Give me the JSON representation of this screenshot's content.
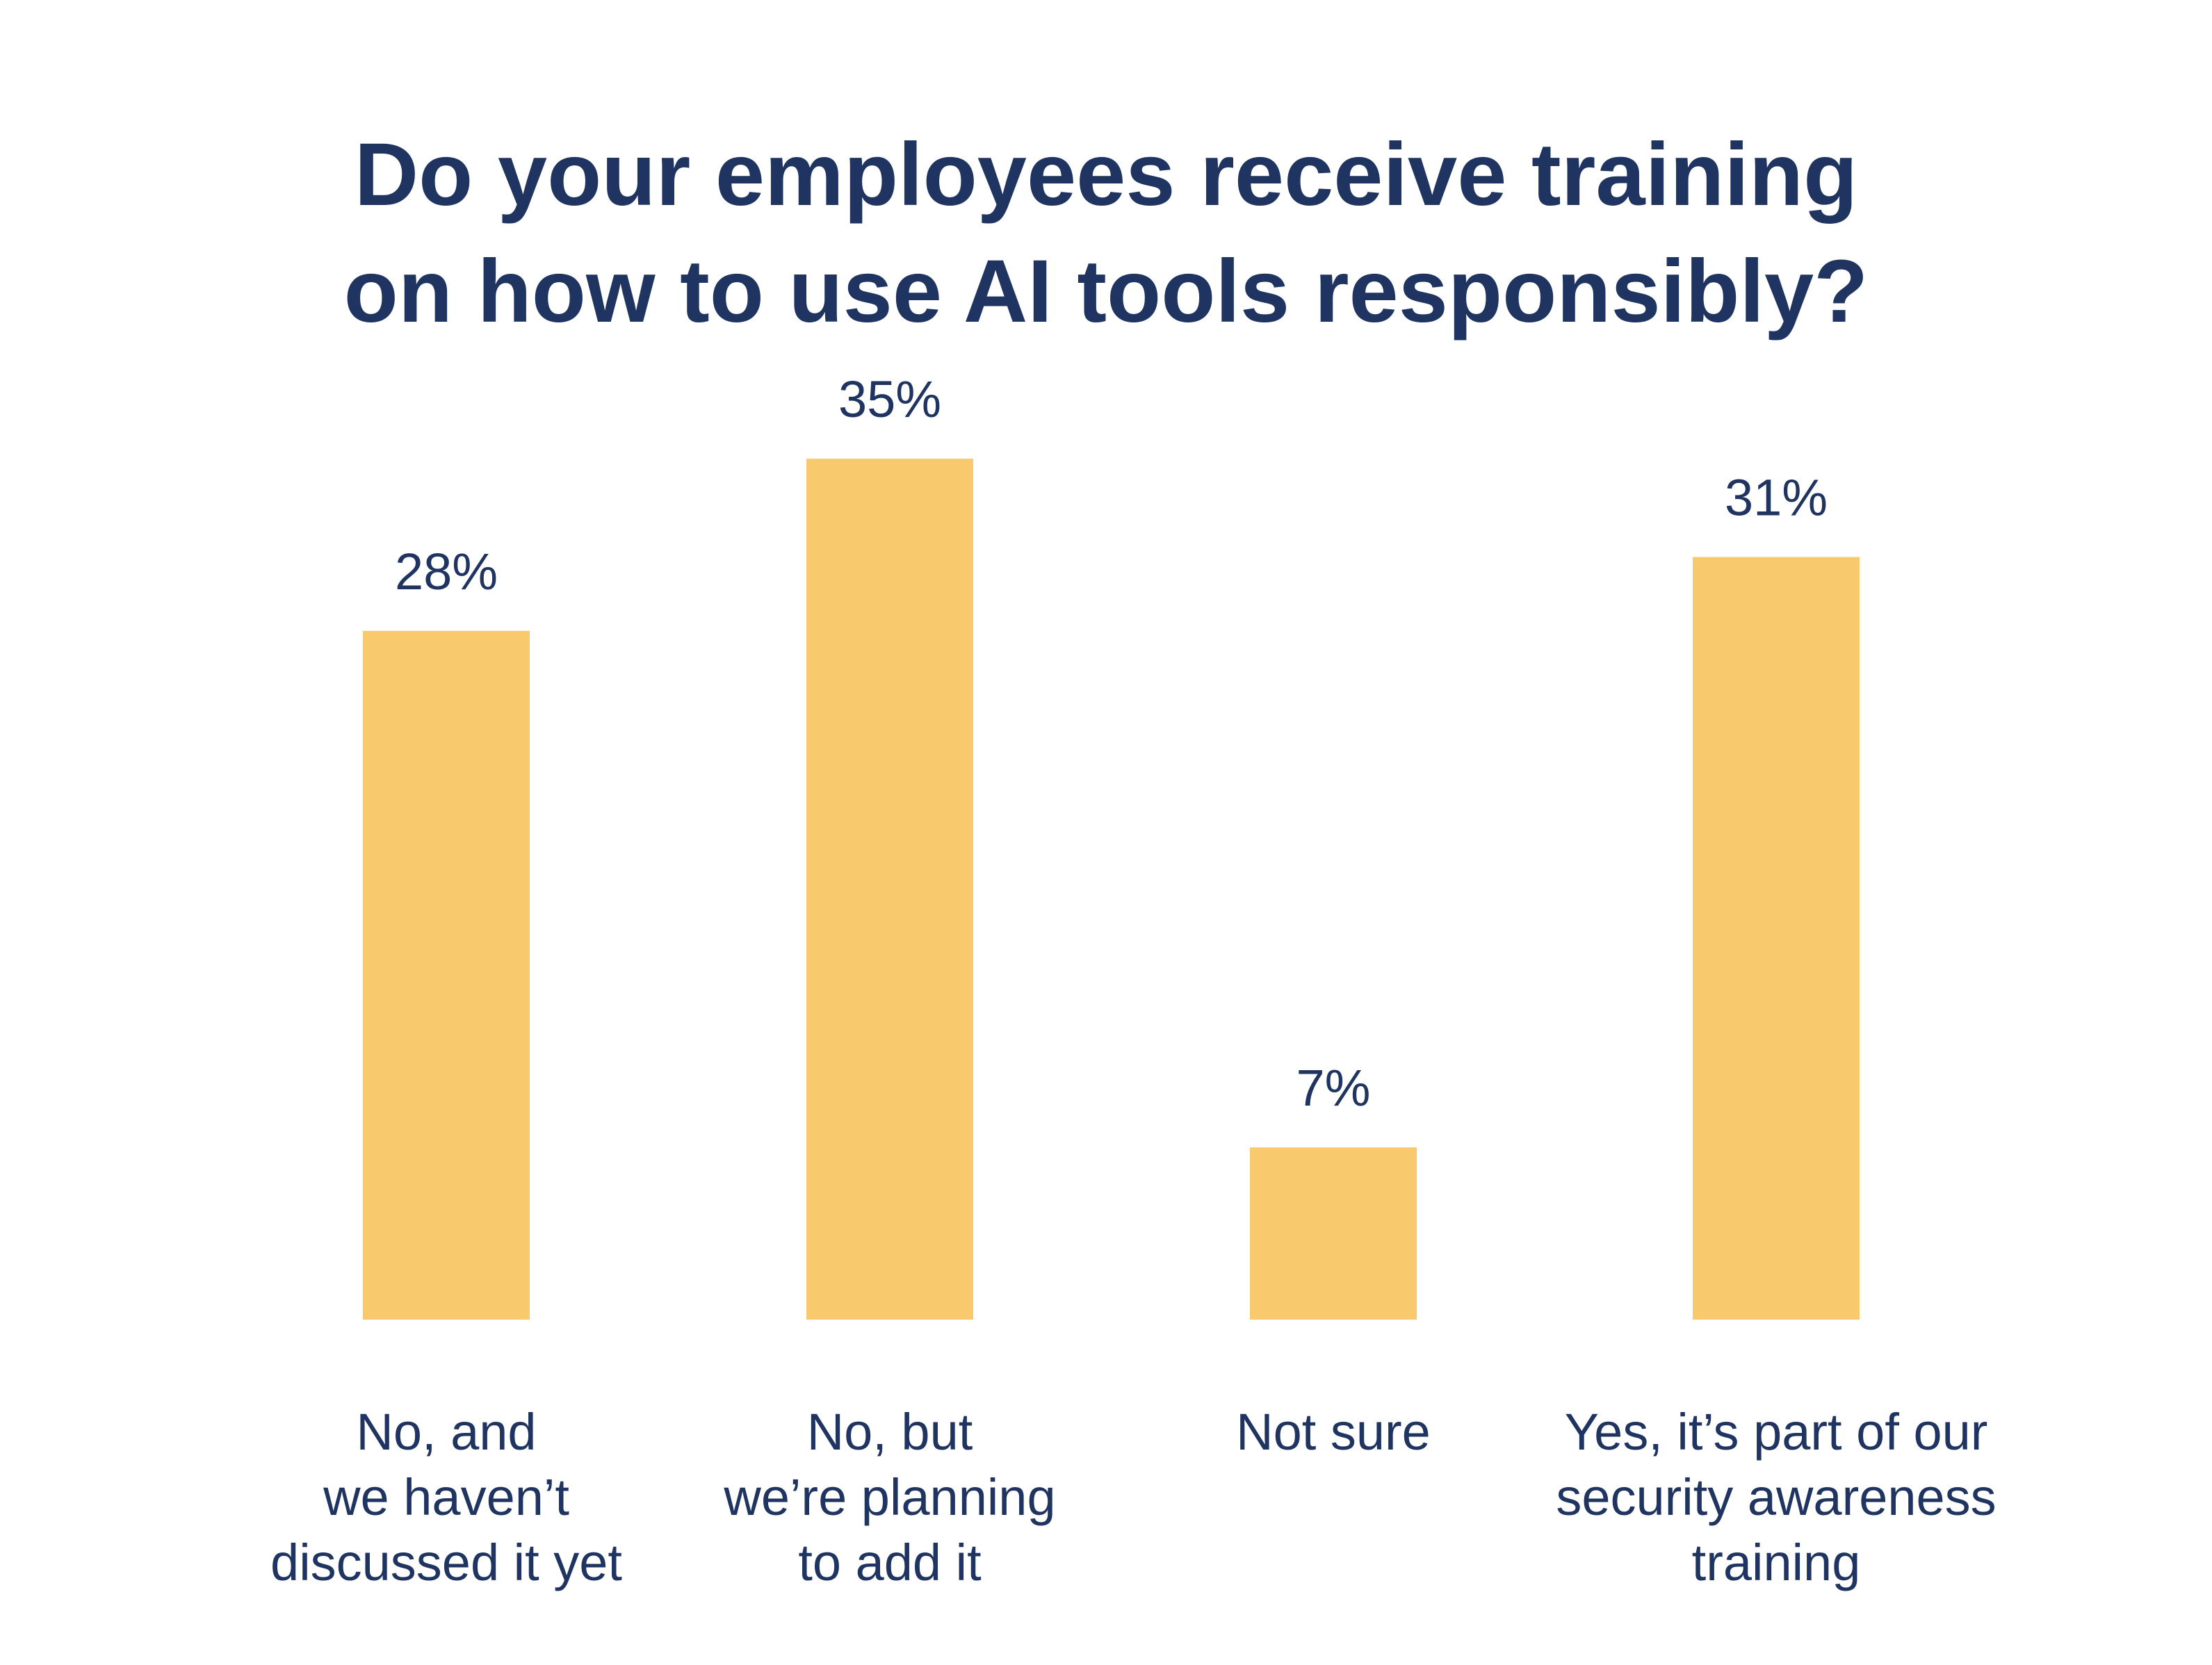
{
  "chart_data": {
    "type": "bar",
    "title_lines": [
      "Do your employees receive training",
      "on how to use AI tools responsibly?"
    ],
    "categories": [
      [
        "No, and",
        "we haven’t",
        "discussed it yet"
      ],
      [
        "No, but",
        "we’re planning",
        "to add it"
      ],
      [
        "Not sure"
      ],
      [
        "Yes, it’s part of our",
        "security awareness",
        "training"
      ]
    ],
    "values": [
      28,
      35,
      7,
      31
    ],
    "value_labels": [
      "28%",
      "35%",
      "7%",
      "31%"
    ],
    "unit": "%",
    "ylim": [
      0,
      35
    ],
    "grid": false,
    "legend": "none"
  },
  "colors": {
    "bar": "#F9C96D",
    "text": "#1F3461",
    "background": "#FFFFFF"
  }
}
